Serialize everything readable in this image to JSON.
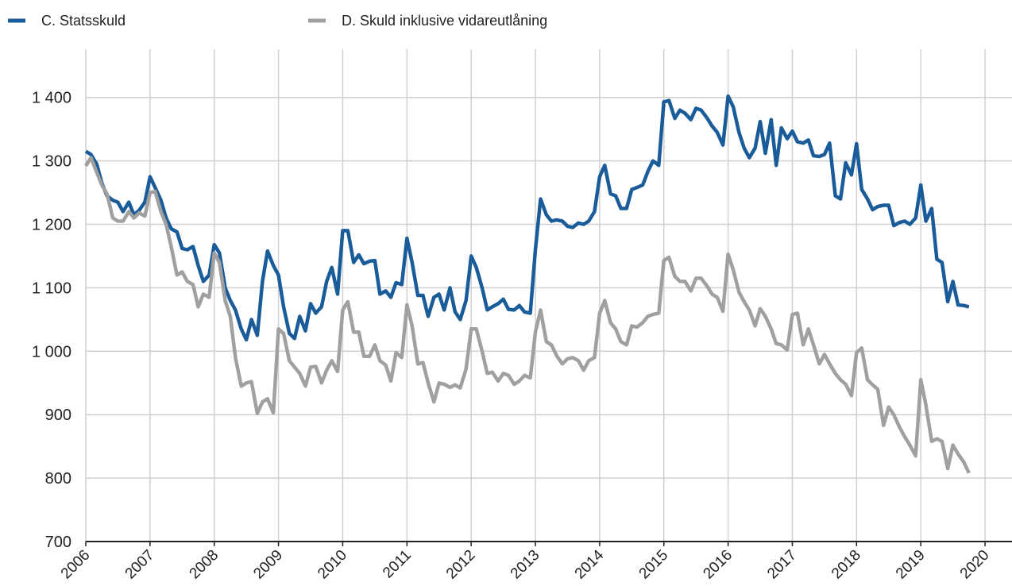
{
  "chart_data": {
    "type": "line",
    "x": [
      2006,
      2006.08,
      2006.17,
      2006.25,
      2006.33,
      2006.42,
      2006.5,
      2006.58,
      2006.67,
      2006.75,
      2006.83,
      2006.92,
      2007,
      2007.08,
      2007.17,
      2007.25,
      2007.33,
      2007.42,
      2007.5,
      2007.58,
      2007.67,
      2007.75,
      2007.83,
      2007.92,
      2008,
      2008.08,
      2008.17,
      2008.25,
      2008.33,
      2008.42,
      2008.5,
      2008.58,
      2008.67,
      2008.75,
      2008.83,
      2008.92,
      2009,
      2009.08,
      2009.17,
      2009.25,
      2009.33,
      2009.42,
      2009.5,
      2009.58,
      2009.67,
      2009.75,
      2009.83,
      2009.92,
      2010,
      2010.08,
      2010.17,
      2010.25,
      2010.33,
      2010.42,
      2010.5,
      2010.58,
      2010.67,
      2010.75,
      2010.83,
      2010.92,
      2011,
      2011.08,
      2011.17,
      2011.25,
      2011.33,
      2011.42,
      2011.5,
      2011.58,
      2011.67,
      2011.75,
      2011.83,
      2011.92,
      2012,
      2012.08,
      2012.17,
      2012.25,
      2012.33,
      2012.42,
      2012.5,
      2012.58,
      2012.67,
      2012.75,
      2012.83,
      2012.92,
      2013,
      2013.08,
      2013.17,
      2013.25,
      2013.33,
      2013.42,
      2013.5,
      2013.58,
      2013.67,
      2013.75,
      2013.83,
      2013.92,
      2014,
      2014.08,
      2014.17,
      2014.25,
      2014.33,
      2014.42,
      2014.5,
      2014.58,
      2014.67,
      2014.75,
      2014.83,
      2014.92,
      2015,
      2015.08,
      2015.17,
      2015.25,
      2015.33,
      2015.42,
      2015.5,
      2015.58,
      2015.67,
      2015.75,
      2015.83,
      2015.92,
      2016,
      2016.08,
      2016.17,
      2016.25,
      2016.33,
      2016.42,
      2016.5,
      2016.58,
      2016.67,
      2016.75,
      2016.83,
      2016.92,
      2017,
      2017.08,
      2017.17,
      2017.25,
      2017.33,
      2017.42,
      2017.5,
      2017.58,
      2017.67,
      2017.75,
      2017.83,
      2017.92,
      2018,
      2018.08,
      2018.17,
      2018.25,
      2018.33,
      2018.42,
      2018.5,
      2018.58,
      2018.67,
      2018.75,
      2018.83,
      2018.92,
      2019,
      2019.08,
      2019.17,
      2019.25,
      2019.33,
      2019.42,
      2019.5,
      2019.58,
      2019.67,
      2019.75
    ],
    "series": [
      {
        "name": "C. Statsskuld",
        "color": "#1a5c9a",
        "values": [
          1315,
          1310,
          1295,
          1265,
          1245,
          1238,
          1235,
          1220,
          1235,
          1215,
          1222,
          1235,
          1275,
          1258,
          1238,
          1210,
          1193,
          1188,
          1162,
          1160,
          1165,
          1135,
          1110,
          1120,
          1168,
          1155,
          1100,
          1080,
          1065,
          1035,
          1018,
          1050,
          1025,
          1110,
          1158,
          1135,
          1120,
          1070,
          1028,
          1020,
          1055,
          1032,
          1075,
          1060,
          1070,
          1110,
          1132,
          1090,
          1190,
          1190,
          1140,
          1152,
          1138,
          1142,
          1143,
          1090,
          1095,
          1085,
          1108,
          1105,
          1178,
          1140,
          1088,
          1088,
          1055,
          1085,
          1090,
          1065,
          1100,
          1062,
          1050,
          1080,
          1150,
          1132,
          1100,
          1065,
          1070,
          1075,
          1082,
          1066,
          1065,
          1072,
          1062,
          1060,
          1160,
          1240,
          1215,
          1205,
          1207,
          1205,
          1197,
          1195,
          1202,
          1200,
          1205,
          1220,
          1275,
          1293,
          1248,
          1245,
          1225,
          1225,
          1255,
          1258,
          1262,
          1283,
          1300,
          1293,
          1393,
          1395,
          1367,
          1380,
          1375,
          1365,
          1383,
          1380,
          1368,
          1355,
          1345,
          1325,
          1402,
          1385,
          1345,
          1320,
          1305,
          1320,
          1362,
          1312,
          1365,
          1293,
          1352,
          1335,
          1347,
          1330,
          1328,
          1333,
          1308,
          1307,
          1310,
          1328,
          1245,
          1240,
          1297,
          1278,
          1327,
          1255,
          1240,
          1223,
          1228,
          1230,
          1230,
          1198,
          1203,
          1205,
          1200,
          1210,
          1262,
          1205,
          1225,
          1145,
          1140,
          1078,
          1110,
          1073,
          1072,
          1070
        ]
      },
      {
        "name": "D. Skuld inklusive vidareutlåning",
        "color": "#a0a0a0",
        "values": [
          1292,
          1305,
          1282,
          1262,
          1248,
          1210,
          1205,
          1205,
          1220,
          1210,
          1218,
          1213,
          1250,
          1252,
          1220,
          1200,
          1165,
          1120,
          1125,
          1110,
          1105,
          1070,
          1090,
          1085,
          1155,
          1140,
          1080,
          1055,
          990,
          945,
          950,
          952,
          902,
          920,
          925,
          903,
          1035,
          1028,
          985,
          975,
          965,
          945,
          975,
          976,
          950,
          970,
          985,
          968,
          1065,
          1078,
          1030,
          1030,
          992,
          992,
          1010,
          985,
          978,
          953,
          998,
          990,
          1073,
          1040,
          980,
          982,
          950,
          920,
          950,
          948,
          943,
          947,
          942,
          972,
          1035,
          1035,
          1000,
          965,
          967,
          953,
          965,
          962,
          948,
          953,
          962,
          958,
          1030,
          1065,
          1015,
          1010,
          993,
          980,
          988,
          990,
          985,
          970,
          985,
          990,
          1060,
          1080,
          1045,
          1035,
          1015,
          1010,
          1040,
          1038,
          1045,
          1055,
          1058,
          1060,
          1143,
          1148,
          1118,
          1110,
          1110,
          1095,
          1115,
          1115,
          1103,
          1090,
          1085,
          1063,
          1153,
          1128,
          1093,
          1078,
          1065,
          1040,
          1067,
          1055,
          1035,
          1012,
          1010,
          1002,
          1058,
          1060,
          1010,
          1035,
          1010,
          980,
          995,
          980,
          965,
          955,
          948,
          930,
          998,
          1005,
          955,
          947,
          940,
          883,
          912,
          900,
          880,
          865,
          852,
          835,
          955,
          915,
          858,
          862,
          858,
          815,
          852,
          838,
          825,
          808
        ]
      }
    ],
    "xlim": [
      2006,
      2020.42
    ],
    "xticks": [
      2006,
      2007,
      2008,
      2009,
      2010,
      2011,
      2012,
      2013,
      2014,
      2015,
      2016,
      2017,
      2018,
      2019,
      2020
    ],
    "ylim": [
      700,
      1476
    ],
    "yticks": [
      700,
      800,
      900,
      {
        "value": 1000,
        "label": "1 000"
      },
      {
        "value": 1100,
        "label": "1 100"
      },
      {
        "value": 1200,
        "label": "1 200"
      },
      {
        "value": 1300,
        "label": "1 300"
      },
      {
        "value": 1400,
        "label": "1 400"
      }
    ],
    "grid": true,
    "legend": "top"
  }
}
